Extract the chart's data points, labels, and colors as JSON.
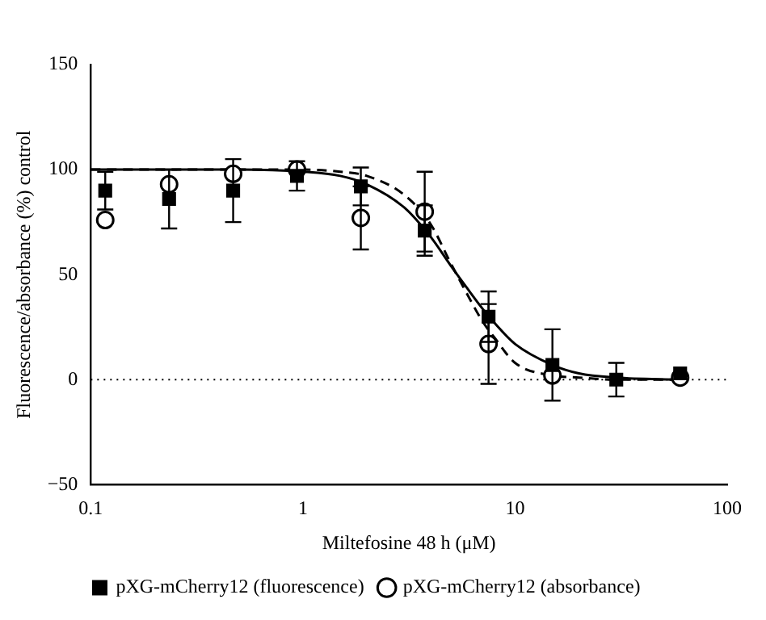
{
  "chart_data": {
    "type": "scatter",
    "xlabel": "Miltefosine 48 h (μM)",
    "ylabel": "Fluorescence/absorbance (%) control",
    "x": [
      0.117,
      0.234,
      0.469,
      0.9375,
      1.875,
      3.75,
      7.5,
      15,
      30,
      60
    ],
    "series": [
      {
        "name": "pXG-mCherry12 (absorbance)",
        "marker": "circle",
        "color": "#000000",
        "values": [
          76,
          93,
          98,
          100,
          77,
          80,
          17,
          2,
          null,
          1
        ],
        "errors": [
          null,
          null,
          null,
          null,
          15,
          19,
          19,
          null,
          null,
          null
        ]
      },
      {
        "name": "pXG-mCherry12 (fluorescence)",
        "marker": "square",
        "color": "#000000",
        "values": [
          90,
          86,
          90,
          97,
          92,
          71,
          30,
          7,
          0,
          3
        ],
        "errors": [
          9,
          14,
          15,
          7,
          9,
          12,
          12,
          17,
          8,
          null
        ]
      },
      {
        "type": "line",
        "marker": "none",
        "line_style": "dashed",
        "color": "#000000",
        "x": [
          0.1,
          0.5,
          1,
          1.5,
          2,
          3,
          4,
          5,
          6,
          7,
          8,
          10,
          15,
          20,
          30,
          60
        ],
        "values": [
          100,
          100,
          100,
          99,
          97,
          88,
          74,
          55,
          40,
          28,
          20,
          8,
          2,
          1,
          0,
          0
        ]
      },
      {
        "type": "line",
        "marker": "none",
        "line_style": "solid",
        "color": "#000000",
        "x": [
          0.1,
          0.5,
          1,
          1.5,
          2,
          3,
          4,
          5,
          6,
          7,
          8,
          10,
          15,
          20,
          30,
          60
        ],
        "values": [
          100,
          100,
          99,
          97,
          93,
          82,
          68,
          54,
          43,
          34,
          27,
          17,
          7,
          3,
          1,
          0
        ]
      }
    ],
    "xlim": [
      0.1,
      100
    ],
    "xticks": [
      0.1,
      1,
      10,
      100
    ],
    "log": "x",
    "ylim": [
      -50,
      150
    ],
    "yticks": [
      {
        "value": -50,
        "label": "−50"
      },
      0,
      50,
      100,
      150
    ],
    "ref_lines": [
      {
        "axis": "y",
        "value": 0,
        "line_style": "dotted",
        "color": "#000000"
      }
    ],
    "grid": false,
    "legend": "bottom"
  }
}
